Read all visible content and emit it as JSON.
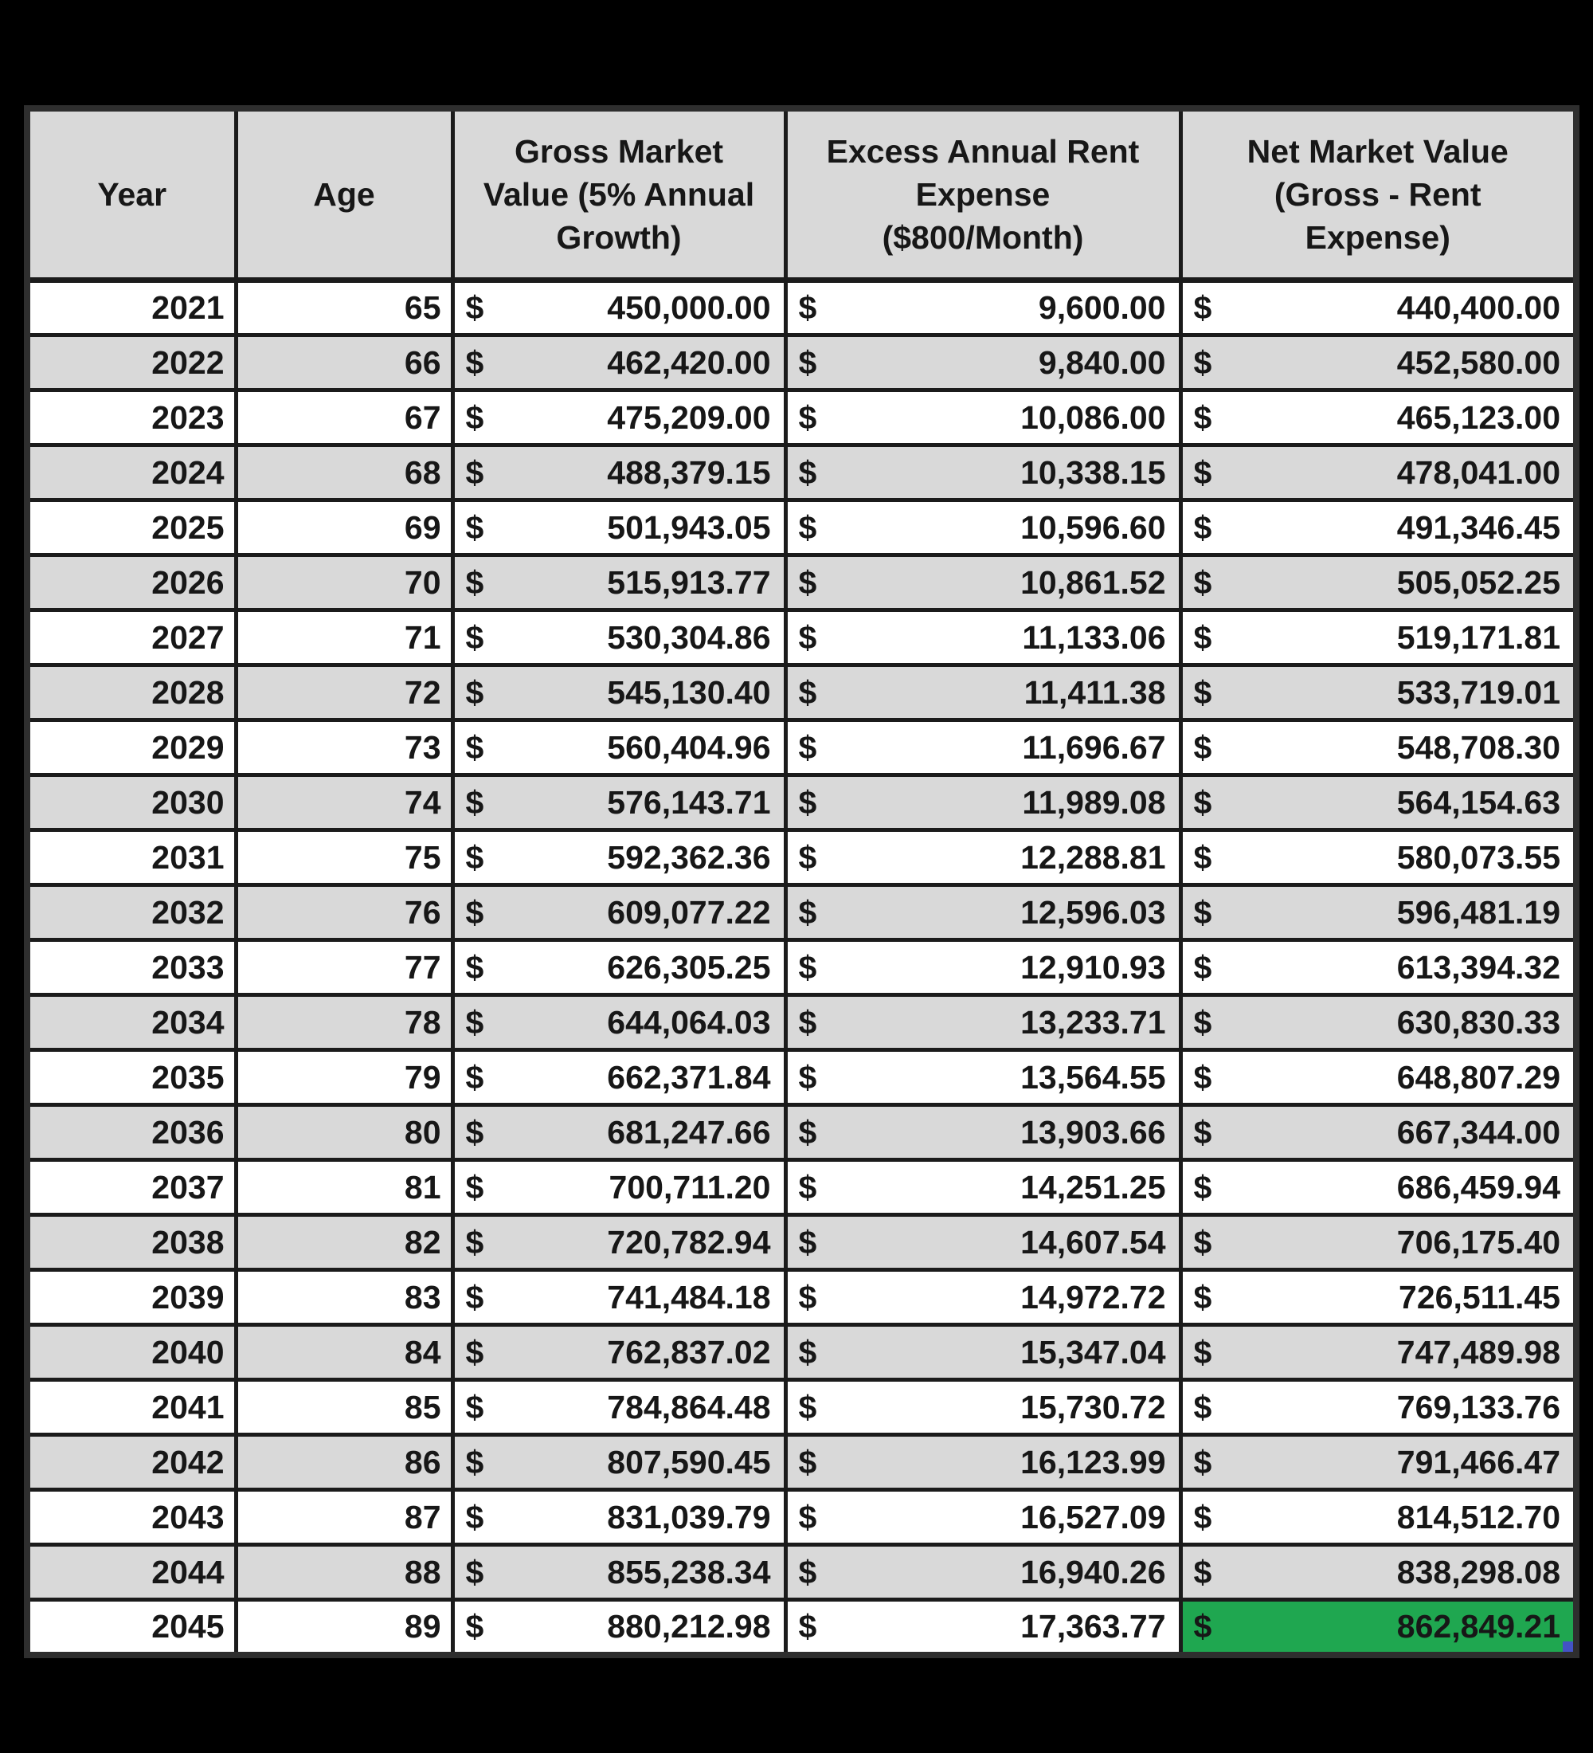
{
  "background_color": "#000000",
  "table": {
    "columns": [
      {
        "id": "year",
        "label": "Year",
        "lines": [
          "Year"
        ]
      },
      {
        "id": "age",
        "label": "Age",
        "lines": [
          "Age"
        ]
      },
      {
        "id": "gross",
        "label": "Gross Market Value (5% Annual Growth)",
        "lines": [
          "Gross Market",
          "Value (5% Annual",
          "Growth)"
        ]
      },
      {
        "id": "rent",
        "label": "Excess Annual Rent Expense ($800/Month)",
        "lines": [
          "Excess Annual Rent",
          "Expense",
          "($800/Month)"
        ]
      },
      {
        "id": "net",
        "label": "Net Market Value (Gross - Rent Expense)",
        "lines": [
          "Net Market Value",
          "(Gross - Rent",
          "Expense)"
        ]
      }
    ],
    "currency_symbol": "$",
    "rows": [
      {
        "year": "2021",
        "age": "65",
        "gross": "450,000.00",
        "rent": "9,600.00",
        "net": "440,400.00"
      },
      {
        "year": "2022",
        "age": "66",
        "gross": "462,420.00",
        "rent": "9,840.00",
        "net": "452,580.00"
      },
      {
        "year": "2023",
        "age": "67",
        "gross": "475,209.00",
        "rent": "10,086.00",
        "net": "465,123.00"
      },
      {
        "year": "2024",
        "age": "68",
        "gross": "488,379.15",
        "rent": "10,338.15",
        "net": "478,041.00"
      },
      {
        "year": "2025",
        "age": "69",
        "gross": "501,943.05",
        "rent": "10,596.60",
        "net": "491,346.45"
      },
      {
        "year": "2026",
        "age": "70",
        "gross": "515,913.77",
        "rent": "10,861.52",
        "net": "505,052.25"
      },
      {
        "year": "2027",
        "age": "71",
        "gross": "530,304.86",
        "rent": "11,133.06",
        "net": "519,171.81"
      },
      {
        "year": "2028",
        "age": "72",
        "gross": "545,130.40",
        "rent": "11,411.38",
        "net": "533,719.01"
      },
      {
        "year": "2029",
        "age": "73",
        "gross": "560,404.96",
        "rent": "11,696.67",
        "net": "548,708.30"
      },
      {
        "year": "2030",
        "age": "74",
        "gross": "576,143.71",
        "rent": "11,989.08",
        "net": "564,154.63"
      },
      {
        "year": "2031",
        "age": "75",
        "gross": "592,362.36",
        "rent": "12,288.81",
        "net": "580,073.55"
      },
      {
        "year": "2032",
        "age": "76",
        "gross": "609,077.22",
        "rent": "12,596.03",
        "net": "596,481.19"
      },
      {
        "year": "2033",
        "age": "77",
        "gross": "626,305.25",
        "rent": "12,910.93",
        "net": "613,394.32"
      },
      {
        "year": "2034",
        "age": "78",
        "gross": "644,064.03",
        "rent": "13,233.71",
        "net": "630,830.33"
      },
      {
        "year": "2035",
        "age": "79",
        "gross": "662,371.84",
        "rent": "13,564.55",
        "net": "648,807.29"
      },
      {
        "year": "2036",
        "age": "80",
        "gross": "681,247.66",
        "rent": "13,903.66",
        "net": "667,344.00"
      },
      {
        "year": "2037",
        "age": "81",
        "gross": "700,711.20",
        "rent": "14,251.25",
        "net": "686,459.94"
      },
      {
        "year": "2038",
        "age": "82",
        "gross": "720,782.94",
        "rent": "14,607.54",
        "net": "706,175.40"
      },
      {
        "year": "2039",
        "age": "83",
        "gross": "741,484.18",
        "rent": "14,972.72",
        "net": "726,511.45"
      },
      {
        "year": "2040",
        "age": "84",
        "gross": "762,837.02",
        "rent": "15,347.04",
        "net": "747,489.98"
      },
      {
        "year": "2041",
        "age": "85",
        "gross": "784,864.48",
        "rent": "15,730.72",
        "net": "769,133.76"
      },
      {
        "year": "2042",
        "age": "86",
        "gross": "807,590.45",
        "rent": "16,123.99",
        "net": "791,466.47"
      },
      {
        "year": "2043",
        "age": "87",
        "gross": "831,039.79",
        "rent": "16,527.09",
        "net": "814,512.70"
      },
      {
        "year": "2044",
        "age": "88",
        "gross": "855,238.34",
        "rent": "16,940.26",
        "net": "838,298.08"
      },
      {
        "year": "2045",
        "age": "89",
        "gross": "880,212.98",
        "rent": "17,363.77",
        "net": "862,849.21"
      }
    ],
    "highlight": {
      "row_year": "2045",
      "column": "net",
      "description": "selected cell with green fill and blue fill handle"
    },
    "colors": {
      "header_bg": "#d9d9d9",
      "stripe_bg": "#d9d9d9",
      "row_bg": "#ffffff",
      "border": "#1b1b1b",
      "text": "#171717",
      "highlight_green": "#1fa750",
      "fill_handle_blue": "#4353c5"
    }
  }
}
